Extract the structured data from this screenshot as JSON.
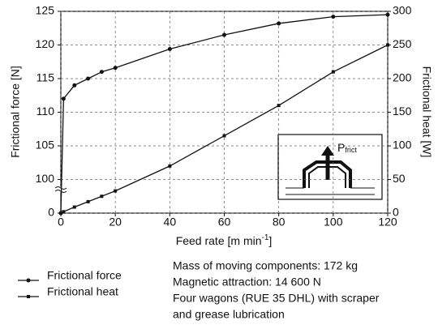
{
  "chart_data": {
    "type": "line",
    "x": [
      0,
      1,
      5,
      10,
      15,
      20,
      40,
      60,
      80,
      100,
      120
    ],
    "series": [
      {
        "name": "Frictional force",
        "color": "#111111",
        "axis": "y",
        "values": [
          0,
          112,
          114,
          115,
          116,
          116.6,
          119.4,
          121.5,
          123.2,
          124.2,
          124.5
        ]
      },
      {
        "name": "Frictional heat",
        "color": "#111111",
        "axis": "y2",
        "values": [
          0,
          2,
          9,
          17,
          25,
          33,
          70,
          115,
          160,
          210,
          250
        ]
      }
    ],
    "xlabel": "Feed rate [m min",
    "xlabel_sup": "-1",
    "xlabel_end": "]",
    "ylabel": "Frictional force [N]",
    "y2label": "Frictional heat [W]",
    "xlim": [
      0,
      120
    ],
    "xticks": [
      0,
      20,
      40,
      60,
      80,
      100,
      120
    ],
    "ylim": [
      0,
      125
    ],
    "y_break": [
      0,
      95
    ],
    "yticks": [
      0,
      100,
      105,
      110,
      115,
      120,
      125
    ],
    "y2lim": [
      0,
      300
    ],
    "y2ticks": [
      0,
      50,
      100,
      150,
      200,
      250,
      300
    ],
    "grid": true,
    "inset_label": "P",
    "inset_label_sub": "frict",
    "notes": [
      "Mass of moving components: 172 kg",
      "Magnetic attraction: 14 600 N",
      "Four wagons (RUE 35 DHL) with scraper",
      "and grease lubrication"
    ]
  }
}
